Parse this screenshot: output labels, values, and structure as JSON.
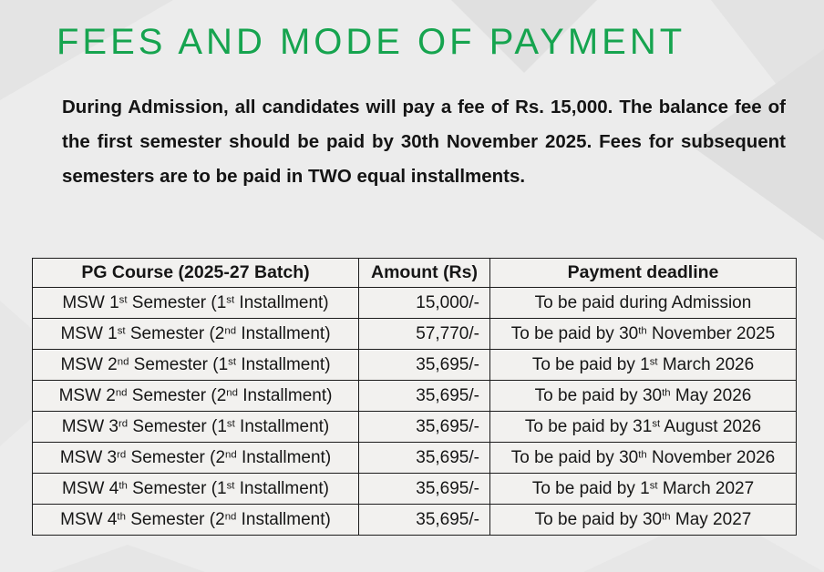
{
  "page": {
    "title": "FEES AND MODE OF PAYMENT",
    "intro_lines": [
      "During Admission, all candidates will pay a fee of Rs. 15,000. The balance fee of",
      "the first semester should be paid by 30th November 2025. Fees for subsequent",
      "semesters are to be paid in TWO equal installments."
    ]
  },
  "colors": {
    "accent_green": "#16a44f",
    "text": "#141414",
    "background": "#ececec",
    "table_border": "#1c1c1c",
    "cell_background": "#f2f1ef"
  },
  "fees_table": {
    "headers": {
      "course": "PG Course (2025-27 Batch)",
      "amount": "Amount (Rs)",
      "deadline": "Payment deadline"
    },
    "rows": [
      {
        "course_pre": "MSW 1",
        "course_sup1": "st",
        "course_mid": " Semester (1",
        "course_sup2": "st",
        "course_post": " Installment)",
        "amount": "15,000/-",
        "deadline_pre": "To be paid during Admission",
        "deadline_sup": "",
        "deadline_post": ""
      },
      {
        "course_pre": "MSW 1",
        "course_sup1": "st",
        "course_mid": " Semester (2",
        "course_sup2": "nd",
        "course_post": " Installment)",
        "amount": "57,770/-",
        "deadline_pre": "To be paid by 30",
        "deadline_sup": "th",
        "deadline_post": " November 2025"
      },
      {
        "course_pre": "MSW 2",
        "course_sup1": "nd",
        "course_mid": " Semester (1",
        "course_sup2": "st",
        "course_post": " Installment)",
        "amount": "35,695/-",
        "deadline_pre": "To be paid by 1",
        "deadline_sup": "st",
        "deadline_post": " March 2026"
      },
      {
        "course_pre": "MSW 2",
        "course_sup1": "nd",
        "course_mid": " Semester (2",
        "course_sup2": "nd",
        "course_post": " Installment)",
        "amount": "35,695/-",
        "deadline_pre": "To be paid by 30",
        "deadline_sup": "th",
        "deadline_post": " May 2026"
      },
      {
        "course_pre": "MSW 3",
        "course_sup1": "rd",
        "course_mid": " Semester (1",
        "course_sup2": "st",
        "course_post": " Installment)",
        "amount": "35,695/-",
        "deadline_pre": "To be paid by 31",
        "deadline_sup": "st",
        "deadline_post": " August 2026"
      },
      {
        "course_pre": "MSW 3",
        "course_sup1": "rd",
        "course_mid": " Semester (2",
        "course_sup2": "nd",
        "course_post": " Installment)",
        "amount": "35,695/-",
        "deadline_pre": "To be paid by 30",
        "deadline_sup": "th",
        "deadline_post": " November 2026"
      },
      {
        "course_pre": "MSW 4",
        "course_sup1": "th",
        "course_mid": " Semester (1",
        "course_sup2": "st",
        "course_post": " Installment)",
        "amount": "35,695/-",
        "deadline_pre": "To be paid by 1",
        "deadline_sup": "st",
        "deadline_post": " March 2027"
      },
      {
        "course_pre": "MSW 4",
        "course_sup1": "th",
        "course_mid": " Semester (2",
        "course_sup2": "nd",
        "course_post": " Installment)",
        "amount": "35,695/-",
        "deadline_pre": "To be paid by 30",
        "deadline_sup": "th",
        "deadline_post": " May 2027"
      }
    ]
  }
}
